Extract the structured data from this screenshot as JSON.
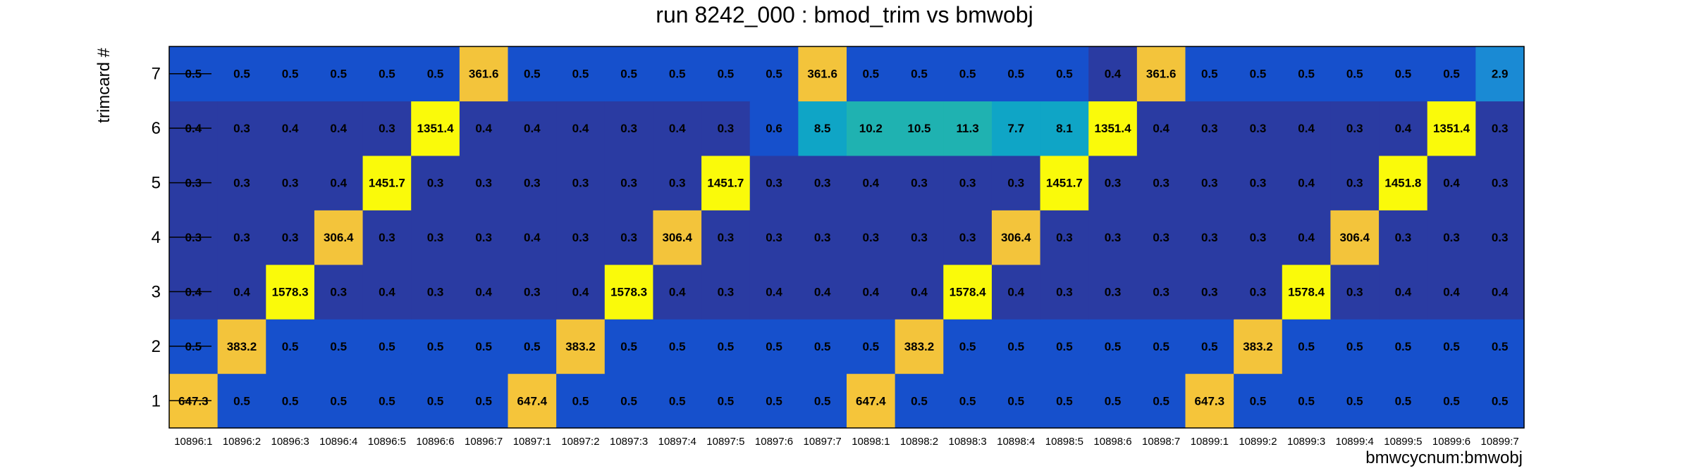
{
  "chart_data": {
    "type": "heatmap",
    "title": "run 8242_000 : bmod_trim vs bmwobj",
    "xlabel": "bmwcycnum:bmwobj",
    "ylabel": "trimcard #",
    "x_categories": [
      "10896:1",
      "10896:2",
      "10896:3",
      "10896:4",
      "10896:5",
      "10896:6",
      "10896:7",
      "10897:1",
      "10897:2",
      "10897:3",
      "10897:4",
      "10897:5",
      "10897:6",
      "10897:7",
      "10898:1",
      "10898:2",
      "10898:3",
      "10898:4",
      "10898:5",
      "10898:6",
      "10898:7",
      "10899:1",
      "10899:2",
      "10899:3",
      "10899:4",
      "10899:5",
      "10899:6",
      "10899:7"
    ],
    "y_categories": [
      "1",
      "2",
      "3",
      "4",
      "5",
      "6",
      "7"
    ],
    "rows": [
      [
        "647.3",
        "0.5",
        "0.5",
        "0.5",
        "0.5",
        "0.5",
        "0.5",
        "647.4",
        "0.5",
        "0.5",
        "0.5",
        "0.5",
        "0.5",
        "0.5",
        "647.4",
        "0.5",
        "0.5",
        "0.5",
        "0.5",
        "0.5",
        "0.5",
        "647.3",
        "0.5",
        "0.5",
        "0.5",
        "0.5",
        "0.5",
        "0.5"
      ],
      [
        "0.5",
        "383.2",
        "0.5",
        "0.5",
        "0.5",
        "0.5",
        "0.5",
        "0.5",
        "383.2",
        "0.5",
        "0.5",
        "0.5",
        "0.5",
        "0.5",
        "0.5",
        "383.2",
        "0.5",
        "0.5",
        "0.5",
        "0.5",
        "0.5",
        "0.5",
        "383.2",
        "0.5",
        "0.5",
        "0.5",
        "0.5",
        "0.5"
      ],
      [
        "0.4",
        "0.4",
        "1578.3",
        "0.3",
        "0.4",
        "0.3",
        "0.4",
        "0.3",
        "0.4",
        "1578.3",
        "0.4",
        "0.3",
        "0.4",
        "0.4",
        "0.4",
        "0.4",
        "1578.4",
        "0.4",
        "0.3",
        "0.3",
        "0.3",
        "0.3",
        "0.3",
        "1578.4",
        "0.3",
        "0.4",
        "0.4",
        "0.4"
      ],
      [
        "0.3",
        "0.3",
        "0.3",
        "306.4",
        "0.3",
        "0.3",
        "0.3",
        "0.4",
        "0.3",
        "0.3",
        "306.4",
        "0.3",
        "0.3",
        "0.3",
        "0.3",
        "0.3",
        "0.3",
        "306.4",
        "0.3",
        "0.3",
        "0.3",
        "0.3",
        "0.3",
        "0.4",
        "306.4",
        "0.3",
        "0.3",
        "0.3"
      ],
      [
        "0.3",
        "0.3",
        "0.3",
        "0.4",
        "1451.7",
        "0.3",
        "0.3",
        "0.3",
        "0.3",
        "0.3",
        "0.3",
        "1451.7",
        "0.3",
        "0.3",
        "0.4",
        "0.3",
        "0.3",
        "0.3",
        "1451.7",
        "0.3",
        "0.3",
        "0.3",
        "0.3",
        "0.4",
        "0.3",
        "1451.8",
        "0.4",
        "0.3"
      ],
      [
        "0.4",
        "0.3",
        "0.4",
        "0.4",
        "0.3",
        "1351.4",
        "0.4",
        "0.4",
        "0.4",
        "0.3",
        "0.4",
        "0.3",
        "0.6",
        "8.5",
        "10.2",
        "10.5",
        "11.3",
        "7.7",
        "8.1",
        "1351.4",
        "0.4",
        "0.3",
        "0.3",
        "0.4",
        "0.3",
        "0.4",
        "1351.4",
        "0.3"
      ],
      [
        "0.5",
        "0.5",
        "0.5",
        "0.5",
        "0.5",
        "0.5",
        "361.6",
        "0.5",
        "0.5",
        "0.5",
        "0.5",
        "0.5",
        "0.5",
        "361.6",
        "0.5",
        "0.5",
        "0.5",
        "0.5",
        "0.5",
        "0.4",
        "361.6",
        "0.5",
        "0.5",
        "0.5",
        "0.5",
        "0.5",
        "0.5",
        "2.9"
      ]
    ],
    "color_levels": [
      {
        "max": 0.45,
        "color": "#2a3ba2"
      },
      {
        "max": 0.75,
        "color": "#1650cc"
      },
      {
        "max": 5,
        "color": "#1a8ad4"
      },
      {
        "max": 9,
        "color": "#0fa5c6"
      },
      {
        "max": 12,
        "color": "#1fb2b1"
      },
      {
        "max": 400,
        "color": "#f3c43b"
      },
      {
        "max": 700,
        "color": "#f5c53a"
      },
      {
        "max": 100000,
        "color": "#fafa0a"
      }
    ],
    "grid": false,
    "legend": "none"
  }
}
